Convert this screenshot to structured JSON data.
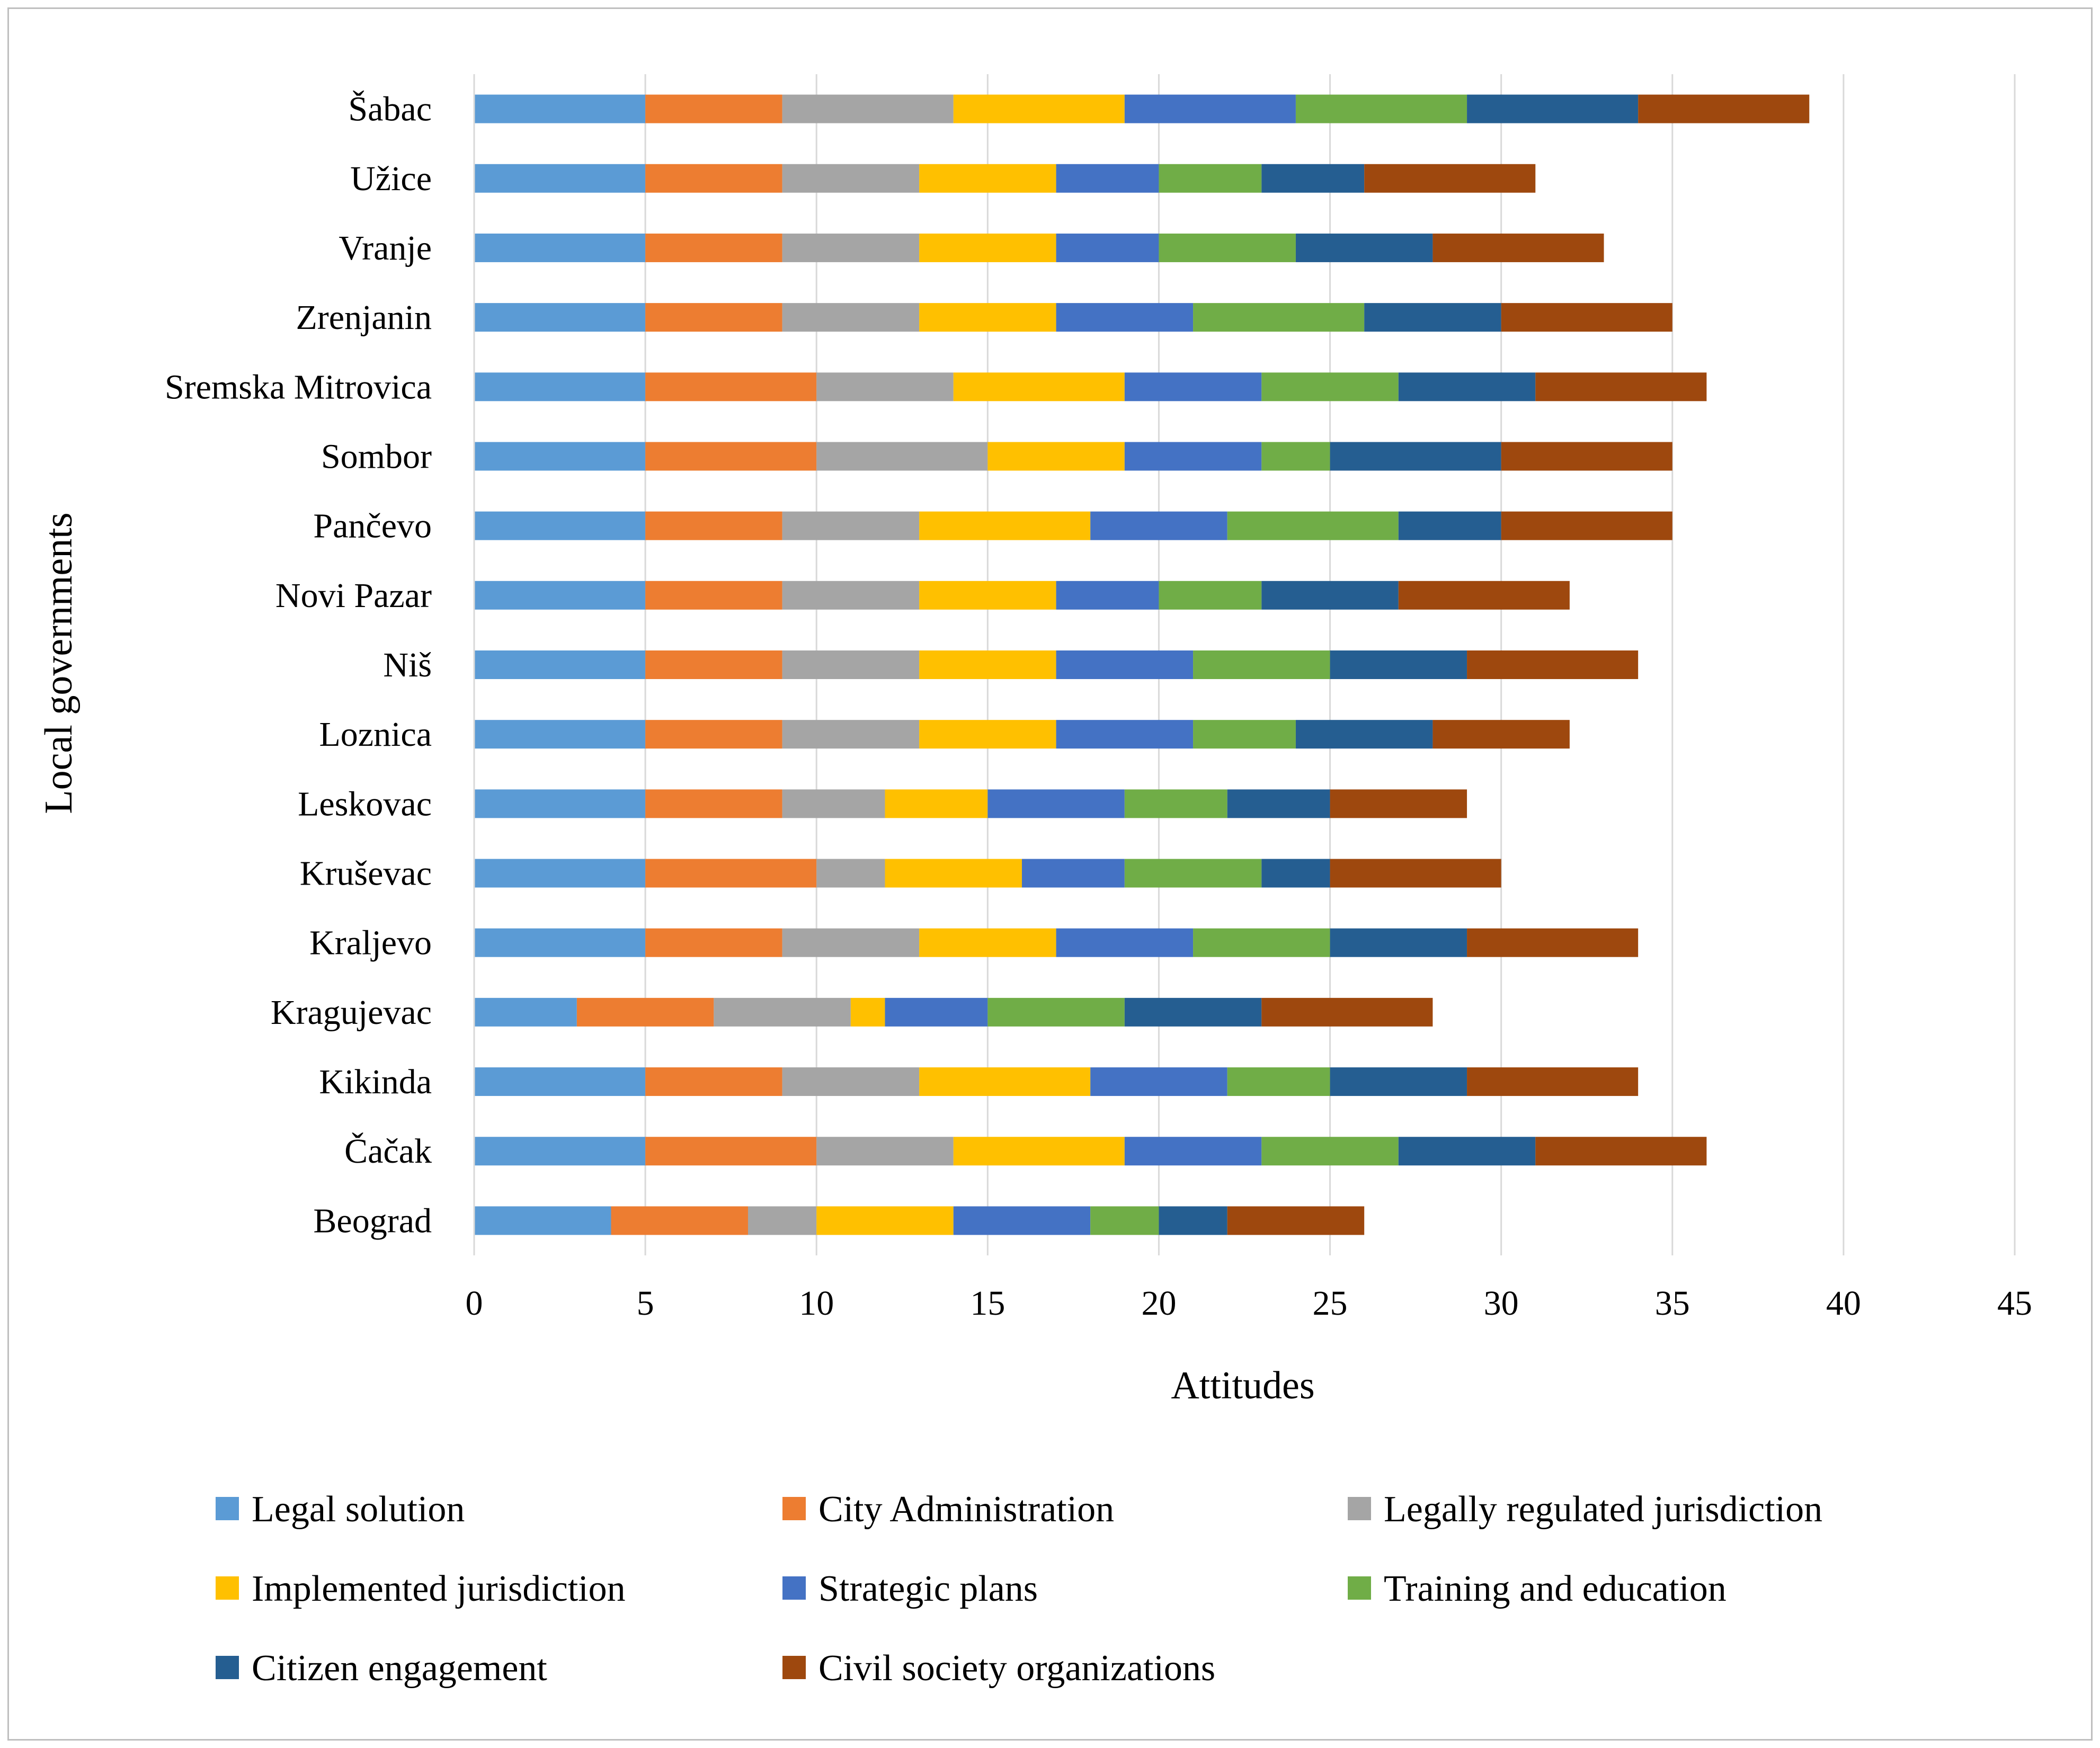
{
  "chart_data": {
    "type": "bar",
    "orientation": "horizontal",
    "stacked": true,
    "title": "",
    "xlabel": "Attitudes",
    "ylabel": "Local governments",
    "xlim": [
      0,
      45
    ],
    "xticks": [
      0,
      5,
      10,
      15,
      20,
      25,
      30,
      35,
      40,
      45
    ],
    "xtick_labels": [
      "0",
      "5",
      "10",
      "15",
      "20",
      "25",
      "30",
      "35",
      "40",
      "45"
    ],
    "grid": "vertical",
    "legend_position": "bottom",
    "categories": [
      "Šabac",
      "Užice",
      "Vranje",
      "Zrenjanin",
      "Sremska Mitrovica",
      "Sombor",
      "Pančevo",
      "Novi Pazar",
      "Niš",
      "Loznica",
      "Leskovac",
      "Kruševac",
      "Kraljevo",
      "Kragujevac",
      "Kikinda",
      "Čačak",
      "Beograd"
    ],
    "series": [
      {
        "name": "Legal solution",
        "color": "#5B9BD5",
        "values": [
          5,
          5,
          5,
          5,
          5,
          5,
          5,
          5,
          5,
          5,
          5,
          5,
          5,
          3,
          5,
          5,
          4
        ]
      },
      {
        "name": "City Administration",
        "color": "#ED7D31",
        "values": [
          4,
          4,
          4,
          4,
          5,
          5,
          4,
          4,
          4,
          4,
          4,
          5,
          4,
          4,
          4,
          5,
          4
        ]
      },
      {
        "name": "Legally regulated jurisdiction",
        "color": "#A5A5A5",
        "values": [
          5,
          4,
          4,
          4,
          4,
          5,
          4,
          4,
          4,
          4,
          3,
          2,
          4,
          4,
          4,
          4,
          2
        ]
      },
      {
        "name": "Implemented jurisdiction",
        "color": "#FFC000",
        "values": [
          5,
          4,
          4,
          4,
          5,
          4,
          5,
          4,
          4,
          4,
          3,
          4,
          4,
          1,
          5,
          5,
          4
        ]
      },
      {
        "name": "Strategic plans",
        "color": "#4472C4",
        "values": [
          5,
          3,
          3,
          4,
          4,
          4,
          4,
          3,
          4,
          4,
          4,
          3,
          4,
          3,
          4,
          4,
          4
        ]
      },
      {
        "name": "Training and education",
        "color": "#70AD47",
        "values": [
          5,
          3,
          4,
          5,
          4,
          2,
          5,
          3,
          4,
          3,
          3,
          4,
          4,
          4,
          3,
          4,
          2
        ]
      },
      {
        "name": "Citizen engagement",
        "color": "#255E91",
        "values": [
          5,
          3,
          4,
          4,
          4,
          5,
          3,
          4,
          4,
          4,
          3,
          2,
          4,
          4,
          4,
          4,
          2
        ]
      },
      {
        "name": "Civil society organizations",
        "color": "#9E480E",
        "values": [
          5,
          5,
          5,
          5,
          5,
          5,
          5,
          5,
          5,
          4,
          4,
          5,
          5,
          5,
          5,
          5,
          4
        ]
      }
    ]
  }
}
